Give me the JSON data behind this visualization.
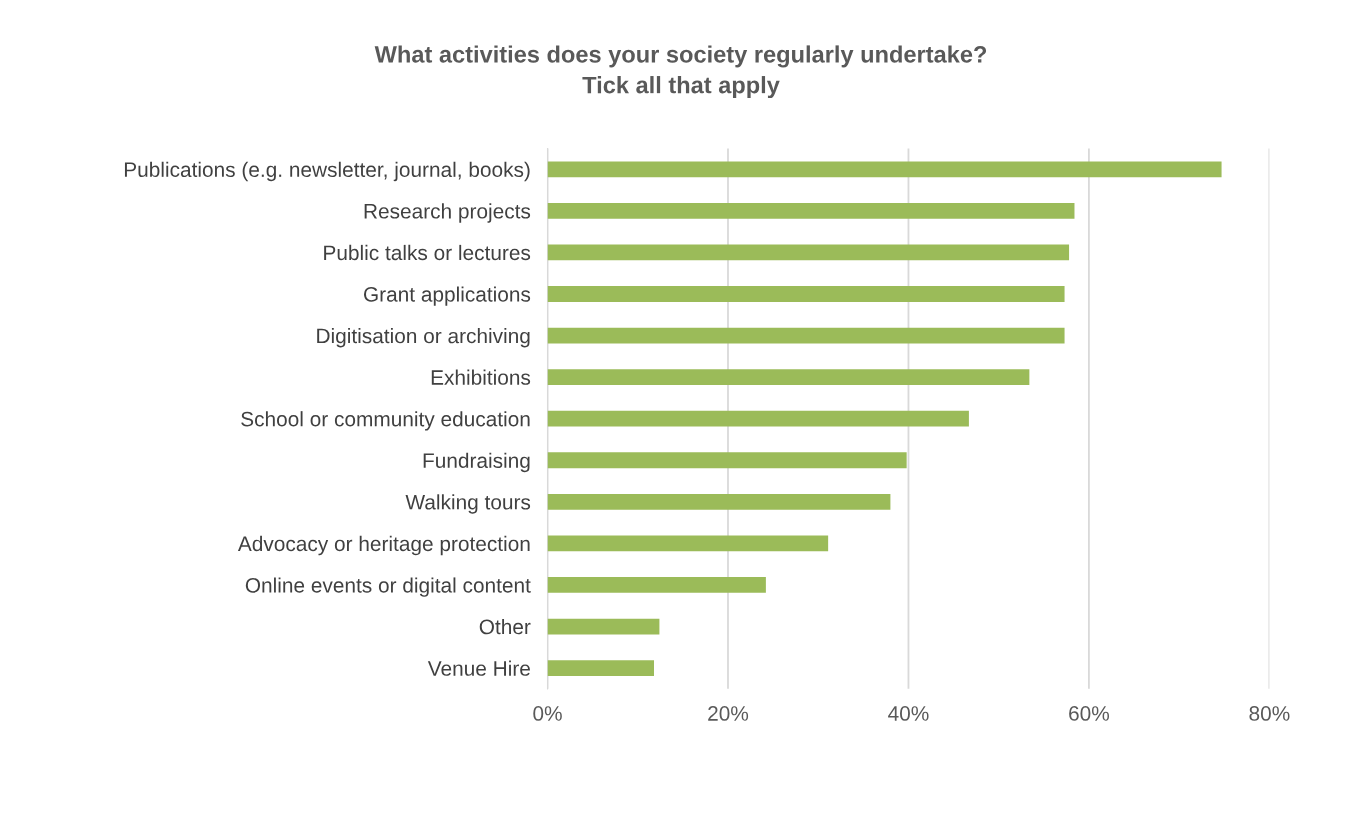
{
  "chart_data": {
    "type": "bar",
    "orientation": "horizontal",
    "title": "What activities does your society regularly undertake?\nTick all that apply",
    "categories": [
      "Publications (e.g. newsletter, journal, books)",
      "Research projects",
      "Public talks or lectures",
      "Grant applications",
      "Digitisation or archiving",
      "Exhibitions",
      "School or community education",
      "Fundraising",
      "Walking tours",
      "Advocacy or heritage protection",
      "Online events or digital content",
      "Other",
      "Venue Hire"
    ],
    "values": [
      74.7,
      58.4,
      57.8,
      57.3,
      57.3,
      53.4,
      46.7,
      39.8,
      38.0,
      31.1,
      24.2,
      12.4,
      11.8
    ],
    "color": "#9bbb59",
    "xlim": [
      0,
      80
    ],
    "xticks": [
      {
        "value": 0,
        "label": "0%"
      },
      {
        "value": 20,
        "label": "20%"
      },
      {
        "value": 40,
        "label": "40%"
      },
      {
        "value": 60,
        "label": "60%"
      },
      {
        "value": 80,
        "label": "80%"
      }
    ],
    "grid": "x"
  }
}
